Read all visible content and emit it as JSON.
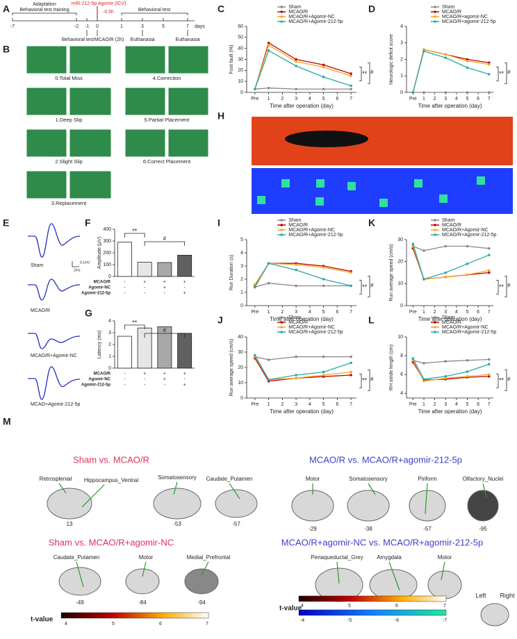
{
  "panel_labels": [
    "A",
    "B",
    "C",
    "D",
    "E",
    "F",
    "G",
    "H",
    "I",
    "J",
    "K",
    "L",
    "M"
  ],
  "timeline": {
    "phases": [
      "Adaptation",
      "Behavioral test training"
    ],
    "injection": "miR-212-5p Agomir (ICV)",
    "injection_time": "-0.5h",
    "post_label": "Behavioral test",
    "days": [
      "-7",
      "-2",
      "-1",
      "0",
      "1",
      "3",
      "5",
      "7"
    ],
    "unit": "days",
    "events": [
      "Behavioral test",
      "MCAO/R (2h)",
      "Euthanasia",
      "Euthanasia"
    ]
  },
  "scoring": [
    "0.Total Miss",
    "1.Deep Slip",
    "2.Slight Slip",
    "3.Replacement",
    "4.Correction",
    "5.Partial Placement",
    "6.Correct Placement"
  ],
  "traces": {
    "labels": [
      "Sham",
      "MCAO/R",
      "MCAO/R+Agomir-NC",
      "MCAO+Agomir-212-5p"
    ],
    "scale": [
      "0.1mV",
      "2ms"
    ]
  },
  "chart_data": [
    {
      "type": "line",
      "ylabel": "Foot fault (%)",
      "xlabel": "Time after operation (day)",
      "x": [
        0,
        1,
        3,
        5,
        7
      ],
      "xlim": [
        -0.6,
        7.4
      ],
      "xticks": [
        {
          "value": 0,
          "label": "Pre"
        },
        1,
        2,
        3,
        4,
        5,
        6,
        7
      ],
      "ylim": [
        0,
        60
      ],
      "yticks": [
        0,
        10,
        20,
        30,
        40,
        50,
        60
      ],
      "annotations": [
        "**",
        "#"
      ],
      "series": [
        {
          "name": "Sham",
          "color": "#888888",
          "values": [
            3,
            4,
            3,
            3,
            3
          ]
        },
        {
          "name": "MCAO/R",
          "color": "#c00000",
          "values": [
            3,
            45,
            30,
            25,
            17
          ]
        },
        {
          "name": "MCAO/R+Agomir-NC",
          "color": "#f5a623",
          "values": [
            3,
            43,
            28,
            23,
            15
          ]
        },
        {
          "name": "MCAO/R+Agomir-212-5p",
          "color": "#2aa8a8",
          "values": [
            3,
            38,
            24,
            14,
            6
          ]
        }
      ]
    },
    {
      "type": "line",
      "ylabel": "Neurologic deficit score",
      "xlabel": "Time after operation (day)",
      "x": [
        0,
        1,
        3,
        5,
        7
      ],
      "xlim": [
        -0.6,
        7.4
      ],
      "xticks": [
        {
          "value": 0,
          "label": "Pre"
        },
        1,
        2,
        3,
        4,
        5,
        6,
        7
      ],
      "ylim": [
        0,
        4
      ],
      "yticks": [
        0,
        1,
        2,
        3,
        4
      ],
      "annotations": [
        "**",
        "#"
      ],
      "series": [
        {
          "name": "Sham",
          "color": "#888888",
          "values": [
            0,
            0,
            0,
            0,
            0
          ]
        },
        {
          "name": "MCAO/R",
          "color": "#c00000",
          "values": [
            0,
            2.6,
            2.3,
            2.0,
            1.8
          ]
        },
        {
          "name": "MCAO/R+agomir-NC",
          "color": "#f5a623",
          "values": [
            0,
            2.6,
            2.3,
            1.9,
            1.7
          ]
        },
        {
          "name": "MCAO/R+agomir-212-5p",
          "color": "#2aa8a8",
          "values": [
            0,
            2.5,
            2.1,
            1.5,
            1.1
          ]
        }
      ]
    },
    {
      "type": "bar",
      "ylabel": "Amplitude (μV)",
      "ylim": [
        0,
        400
      ],
      "yticks": [
        0,
        100,
        200,
        300,
        400
      ],
      "values": [
        290,
        120,
        118,
        180
      ],
      "colors": [
        "#ffffff",
        "#e6e6e6",
        "#a8a8a8",
        "#606060"
      ],
      "annotations": [
        "**",
        "#"
      ],
      "groups": [
        {
          "name": "MCAO/R",
          "signs": [
            "-",
            "+",
            "+",
            "+"
          ]
        },
        {
          "name": "Agomir-NC",
          "signs": [
            "-",
            "-",
            "+",
            "-"
          ]
        },
        {
          "name": "Agomir-212-5p",
          "signs": [
            "-",
            "-",
            "-",
            "+"
          ]
        }
      ]
    },
    {
      "type": "bar",
      "ylabel": "Latency (ms)",
      "ylim": [
        0,
        4
      ],
      "yticks": [
        0,
        1,
        2,
        3,
        4
      ],
      "values": [
        2.7,
        3.4,
        3.5,
        2.95
      ],
      "colors": [
        "#ffffff",
        "#e6e6e6",
        "#a8a8a8",
        "#606060"
      ],
      "annotations": [
        "**",
        "#"
      ],
      "groups": [
        {
          "name": "MCAO/R",
          "signs": [
            "-",
            "+",
            "+",
            "+"
          ]
        },
        {
          "name": "Agomir-NC",
          "signs": [
            "-",
            "-",
            "+",
            "-"
          ]
        },
        {
          "name": "Agomir-212-5p",
          "signs": [
            "-",
            "-",
            "-",
            "+"
          ]
        }
      ]
    },
    {
      "type": "line",
      "ylabel": "Run Duration (s)",
      "xlabel": "Time after operation (day)",
      "x": [
        0,
        1,
        3,
        5,
        7
      ],
      "xlim": [
        -0.6,
        7.4
      ],
      "xticks": [
        {
          "value": 0,
          "label": "Pre"
        },
        1,
        2,
        3,
        4,
        5,
        6,
        7
      ],
      "ylim": [
        0,
        5
      ],
      "yticks": [
        0,
        1,
        2,
        3,
        4,
        5
      ],
      "annotations": [
        "**",
        "#"
      ],
      "series": [
        {
          "name": "Sham",
          "color": "#888888",
          "values": [
            1.4,
            1.7,
            1.5,
            1.5,
            1.5
          ]
        },
        {
          "name": "MCAO/R",
          "color": "#c00000",
          "values": [
            1.5,
            3.2,
            3.2,
            3.0,
            2.6
          ]
        },
        {
          "name": "MCAO/R+Agomir-NC",
          "color": "#f5a623",
          "values": [
            1.6,
            3.2,
            3.1,
            2.9,
            2.5
          ]
        },
        {
          "name": "MCAO/R+Agomir-212-5p",
          "color": "#2aa8a8",
          "values": [
            1.4,
            3.2,
            2.7,
            2.0,
            1.5
          ]
        }
      ]
    },
    {
      "type": "line",
      "ylabel": "Run average speed (cm/s)",
      "xlabel": "Time after operation (day)",
      "x": [
        0,
        1,
        3,
        5,
        7
      ],
      "xlim": [
        -0.6,
        7.4
      ],
      "xticks": [
        {
          "value": 0,
          "label": "Pre"
        },
        1,
        2,
        3,
        4,
        5,
        6,
        7
      ],
      "ylim": [
        0,
        30
      ],
      "yticks": [
        0,
        10,
        20,
        30
      ],
      "annotations": [
        "**",
        "#"
      ],
      "series": [
        {
          "name": "Sham",
          "color": "#888888",
          "values": [
            27,
            25,
            27,
            27,
            26
          ]
        },
        {
          "name": "MCAO/R",
          "color": "#c00000",
          "values": [
            26,
            12,
            13,
            14,
            15
          ]
        },
        {
          "name": "MCAO/R+Agomir-NC",
          "color": "#f5a623",
          "values": [
            27,
            12,
            13,
            14,
            16
          ]
        },
        {
          "name": "MCAO/R+Agomir-212-5p",
          "color": "#2aa8a8",
          "values": [
            28,
            12,
            15,
            19,
            23
          ]
        }
      ]
    },
    {
      "type": "line",
      "ylabel": "Run average speed (cm/s)",
      "xlabel": "Time after operation (day)",
      "x": [
        0,
        1,
        3,
        5,
        7
      ],
      "xlim": [
        -0.6,
        7.4
      ],
      "xticks": [
        {
          "value": 0,
          "label": "Pre"
        },
        1,
        2,
        3,
        4,
        5,
        6,
        7
      ],
      "ylim": [
        0,
        40
      ],
      "yticks": [
        0,
        10,
        20,
        30,
        40
      ],
      "annotations": [
        "**",
        "#"
      ],
      "series": [
        {
          "name": "Sham",
          "color": "#888888",
          "values": [
            27,
            25,
            27,
            27,
            27
          ]
        },
        {
          "name": "MCAO/R",
          "color": "#c00000",
          "values": [
            26,
            11,
            13,
            14,
            15
          ]
        },
        {
          "name": "MCAO/R+Agomir-NC",
          "color": "#f5a623",
          "values": [
            27,
            12,
            13,
            15,
            17
          ]
        },
        {
          "name": "MCAO/R+Agomir-212-5p",
          "color": "#2aa8a8",
          "values": [
            28,
            12,
            15,
            17,
            23
          ]
        }
      ]
    },
    {
      "type": "line",
      "ylabel": "RH stride length (cm)",
      "xlabel": "Time after operation (day)",
      "x": [
        0,
        1,
        3,
        5,
        7
      ],
      "xlim": [
        -0.6,
        7.4
      ],
      "xticks": [
        {
          "value": 0,
          "label": "Pre"
        },
        1,
        2,
        3,
        4,
        5,
        6,
        7
      ],
      "ylim": [
        3.5,
        10
      ],
      "yticks": [
        4,
        6,
        8,
        10
      ],
      "annotations": [
        "**",
        "#"
      ],
      "series": [
        {
          "name": "Sham",
          "color": "#888888",
          "values": [
            7.5,
            7.2,
            7.4,
            7.5,
            7.6
          ]
        },
        {
          "name": "MCAO/R",
          "color": "#c00000",
          "values": [
            7.3,
            5.4,
            5.5,
            5.7,
            5.8
          ]
        },
        {
          "name": "MCAO/R+Agomir-NC",
          "color": "#f5a623",
          "values": [
            7.5,
            5.3,
            5.6,
            5.8,
            6.0
          ]
        },
        {
          "name": "MCAO/R+Agomir-212-5p",
          "color": "#2aa8a8",
          "values": [
            7.7,
            5.5,
            5.8,
            6.3,
            7.1
          ]
        }
      ]
    }
  ],
  "brain": {
    "comparisons": [
      {
        "title": "Sham vs. MCAO/R",
        "regions": [
          "Retrosplenial",
          "Hippocampus_Ventral",
          "Somatosensory",
          "Caudate_Putamen"
        ],
        "slices": [
          "13",
          "-53",
          "-57"
        ]
      },
      {
        "title": "MCAO/R vs. MCAO/R+agomir-212-5p",
        "regions": [
          "Motor",
          "Somatosensory",
          "Piriform",
          "Olfactory_Nuclei"
        ],
        "slices": [
          "-29",
          "-38",
          "-57",
          "-95"
        ]
      },
      {
        "title": "Sham vs. MCAO/R+agomir-NC",
        "regions": [
          "Caudate_Putamen",
          "Motor",
          "Medial_Prefrontal"
        ],
        "slices": [
          "-49",
          "-84",
          "-94"
        ]
      },
      {
        "title": "MCAO/R+agomir-NC vs. MCAO/R+agomir-212-5p",
        "regions": [
          "Periaqueductal_Grey",
          "Amygdala",
          "Motor"
        ]
      }
    ],
    "colorbar_label": "t-value",
    "positive_ticks": [
      "4",
      "5",
      "6",
      "7"
    ],
    "negative_ticks": [
      "-4",
      "-5",
      "-6",
      "-7"
    ],
    "orientation": [
      "Left",
      "Right"
    ]
  }
}
